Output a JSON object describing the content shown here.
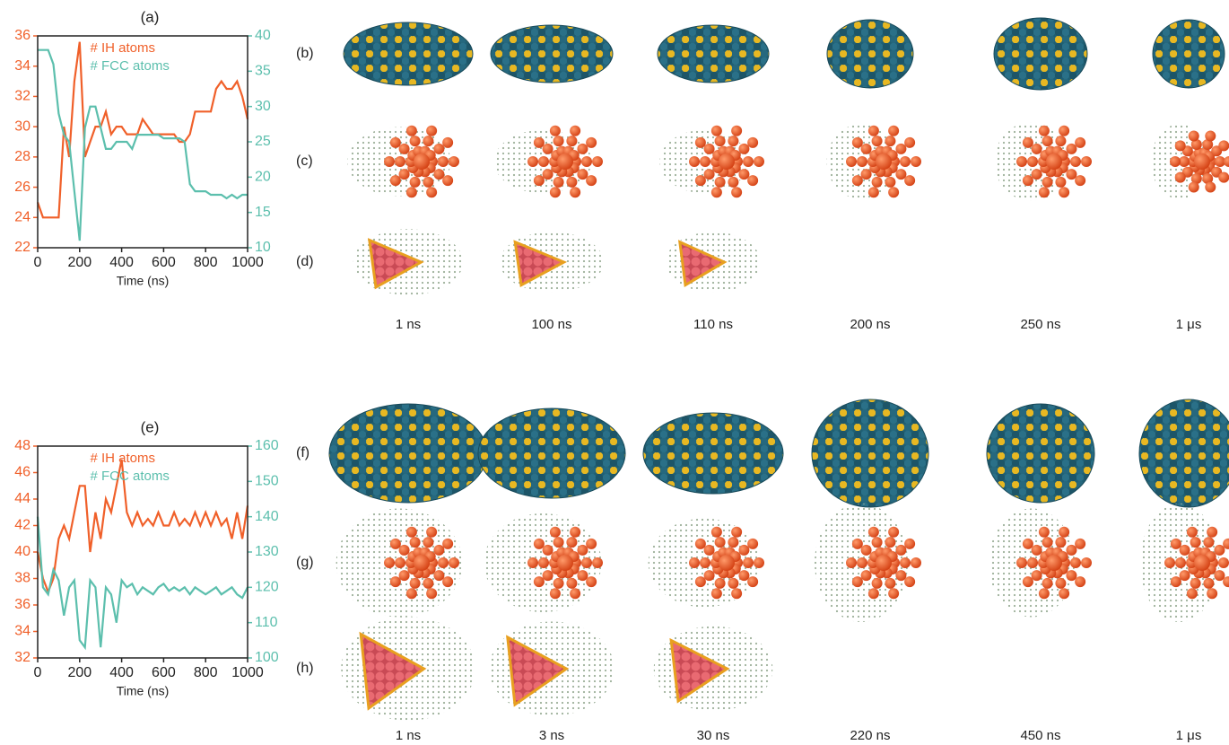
{
  "chart_data": [
    {
      "type": "line",
      "title": "(a)",
      "x_label": "Time (ns)",
      "x": [
        0,
        25,
        50,
        75,
        100,
        125,
        150,
        175,
        200,
        225,
        250,
        275,
        300,
        325,
        350,
        375,
        400,
        425,
        450,
        475,
        500,
        525,
        550,
        575,
        600,
        625,
        650,
        675,
        700,
        725,
        750,
        775,
        800,
        825,
        850,
        875,
        900,
        925,
        950,
        975,
        1000
      ],
      "series": [
        {
          "name": "# IH atoms",
          "color": "#f0602a",
          "axis": "y",
          "values": [
            25,
            24,
            24,
            24,
            24,
            30,
            28,
            33,
            35.6,
            28,
            29,
            30,
            30,
            31,
            29.5,
            30,
            30,
            29.5,
            29.5,
            29.5,
            30.5,
            30,
            29.5,
            29.5,
            29.5,
            29.5,
            29.5,
            29,
            29,
            29.5,
            31,
            31,
            31,
            31,
            32.5,
            33,
            32.5,
            32.5,
            33,
            32,
            30.5
          ]
        },
        {
          "name": "# FCC atoms",
          "color": "#5cbfad",
          "axis": "y2",
          "values": [
            38,
            38,
            38,
            36,
            29,
            26,
            25,
            18,
            11,
            27,
            30,
            30,
            27,
            24,
            24,
            25,
            25,
            25,
            24,
            26,
            26,
            26,
            26,
            26,
            25.5,
            25.5,
            25.5,
            25.5,
            25,
            19,
            18,
            18,
            18,
            17.5,
            17.5,
            17.5,
            17,
            17.5,
            17,
            17.5,
            17.5
          ]
        }
      ],
      "xlim": [
        0,
        1000
      ],
      "xticks": [
        0,
        200,
        400,
        600,
        800,
        1000
      ],
      "ylim": [
        22,
        36
      ],
      "yticks": [
        22,
        24,
        26,
        28,
        30,
        32,
        34,
        36
      ],
      "y2lim": [
        10,
        40
      ],
      "y2ticks": [
        10,
        15,
        20,
        25,
        30,
        35,
        40
      ],
      "legend": "upper center"
    },
    {
      "type": "line",
      "title": "(e)",
      "x_label": "Time (ns)",
      "x": [
        0,
        25,
        50,
        75,
        100,
        125,
        150,
        175,
        200,
        225,
        250,
        275,
        300,
        325,
        350,
        375,
        400,
        425,
        450,
        475,
        500,
        525,
        550,
        575,
        600,
        625,
        650,
        675,
        700,
        725,
        750,
        775,
        800,
        825,
        850,
        875,
        900,
        925,
        950,
        975,
        1000
      ],
      "series": [
        {
          "name": "# IH atoms",
          "color": "#f0602a",
          "axis": "y",
          "values": [
            40,
            38,
            37,
            38,
            41,
            42,
            41,
            43,
            45,
            45,
            40,
            43,
            41,
            44,
            43,
            45,
            47,
            43,
            42,
            43,
            42,
            42.5,
            42,
            43,
            42,
            42,
            43,
            42,
            42.5,
            42,
            43,
            42,
            43,
            42,
            43,
            42,
            42.5,
            41,
            43,
            41,
            43.5
          ]
        },
        {
          "name": "# FCC atoms",
          "color": "#5cbfad",
          "axis": "y2",
          "values": [
            140,
            120,
            118,
            125,
            122,
            112,
            120,
            122,
            105,
            103,
            122,
            120,
            103,
            120,
            118,
            110,
            122,
            120,
            121,
            118,
            120,
            119,
            118,
            120,
            121,
            119,
            120,
            119,
            120,
            118,
            120,
            119,
            118,
            119,
            120,
            118,
            119,
            120,
            118,
            117,
            120
          ]
        }
      ],
      "xlim": [
        0,
        1000
      ],
      "xticks": [
        0,
        200,
        400,
        600,
        800,
        1000
      ],
      "ylim": [
        32,
        48
      ],
      "yticks": [
        32,
        34,
        36,
        38,
        40,
        42,
        44,
        46,
        48
      ],
      "y2lim": [
        100,
        160
      ],
      "y2ticks": [
        100,
        110,
        120,
        130,
        140,
        150,
        160
      ],
      "legend": "upper center"
    }
  ],
  "figure": {
    "top_rows": [
      "(b)",
      "(c)",
      "(d)"
    ],
    "top_times": [
      "1 ns",
      "100 ns",
      "110 ns",
      "200 ns",
      "250 ns",
      "1 μs"
    ],
    "bottom_rows": [
      "(f)",
      "(g)",
      "(h)"
    ],
    "bottom_times": [
      "1 ns",
      "3 ns",
      "30 ns",
      "220 ns",
      "450 ns",
      "1 μs"
    ]
  }
}
